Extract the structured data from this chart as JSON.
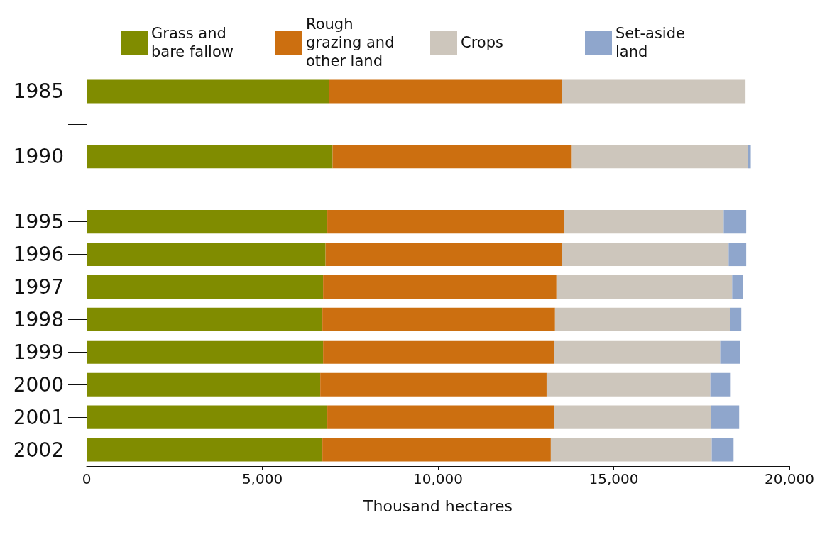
{
  "chart_data": {
    "type": "bar",
    "orientation": "horizontal",
    "stacked": true,
    "xlabel": "Thousand hectares",
    "categories": [
      "1985",
      null,
      "1990",
      null,
      "1995",
      "1996",
      "1997",
      "1998",
      "1999",
      "2000",
      "2001",
      "2002"
    ],
    "series": [
      {
        "name": "Grass and bare fallow",
        "color": "#808c00",
        "values": [
          6900,
          null,
          7000,
          null,
          6850,
          6800,
          6730,
          6710,
          6730,
          6650,
          6850,
          6710
        ]
      },
      {
        "name": "Rough grazing and other land",
        "color": "#cc6f10",
        "values": [
          6630,
          null,
          6810,
          null,
          6740,
          6730,
          6640,
          6620,
          6580,
          6440,
          6460,
          6500
        ]
      },
      {
        "name": "Crops",
        "color": "#cdc6bc",
        "values": [
          5220,
          null,
          5010,
          null,
          4540,
          4740,
          5000,
          4980,
          4720,
          4660,
          4460,
          4580
        ]
      },
      {
        "name": "Set-aside land",
        "color": "#8fa6cc",
        "values": [
          0,
          null,
          80,
          null,
          640,
          500,
          300,
          320,
          560,
          580,
          800,
          620
        ]
      }
    ],
    "xlim": [
      0,
      20000
    ],
    "xticks": [
      0,
      {
        "value": 5000,
        "label": "5,000"
      },
      {
        "value": 10000,
        "label": "10,000"
      },
      {
        "value": 15000,
        "label": "15,000"
      },
      {
        "value": 20000,
        "label": "20,000"
      }
    ],
    "grid": false,
    "legend": "top"
  }
}
